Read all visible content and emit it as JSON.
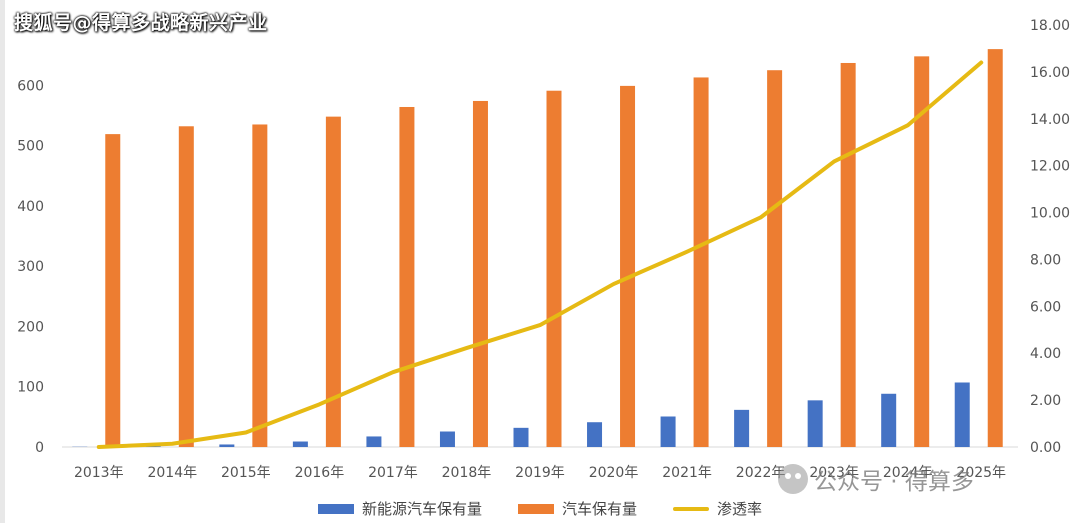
{
  "watermark": {
    "title": "搜狐号@得算多战略新兴产业",
    "account": "公众号 · 得算多"
  },
  "colors": {
    "nev": "#4472C4",
    "total": "#ED7D31",
    "rate": "#E6BA14",
    "axis_text": "#555555",
    "grid": "#d9d9d9"
  },
  "chart_data": {
    "type": "bar",
    "categories": [
      "2013年",
      "2014年",
      "2015年",
      "2016年",
      "2017年",
      "2018年",
      "2019年",
      "2020年",
      "2021年",
      "2022年",
      "2023年",
      "2024年",
      "2025年"
    ],
    "series": [
      {
        "name": "新能源汽车保有量",
        "type": "bar",
        "axis": "left",
        "values": [
          0.4,
          1.0,
          4.2,
          9.1,
          17.5,
          25.7,
          31.8,
          41.1,
          50.6,
          61.6,
          77.4,
          88.3,
          107.0
        ]
      },
      {
        "name": "汽车保有量",
        "type": "bar",
        "axis": "left",
        "values": [
          519,
          532,
          535,
          548,
          564,
          574,
          591,
          599,
          613,
          625,
          637,
          648,
          660
        ]
      },
      {
        "name": "渗透率",
        "type": "line",
        "axis": "right",
        "values": [
          0.0,
          0.14,
          0.62,
          1.82,
          3.19,
          4.22,
          5.2,
          6.95,
          8.33,
          9.79,
          12.18,
          13.72,
          16.4
        ]
      }
    ],
    "y_left": {
      "min": 0,
      "max": 700,
      "ticks": [
        "0",
        "100",
        "200",
        "300",
        "400",
        "500",
        "600"
      ]
    },
    "y_right": {
      "min": 0,
      "max": 18,
      "ticks": [
        "0.00",
        "2.00",
        "4.00",
        "6.00",
        "8.00",
        "10.00",
        "12.00",
        "14.00",
        "16.00",
        "18.00"
      ]
    },
    "grid": false,
    "legend_position": "bottom"
  }
}
